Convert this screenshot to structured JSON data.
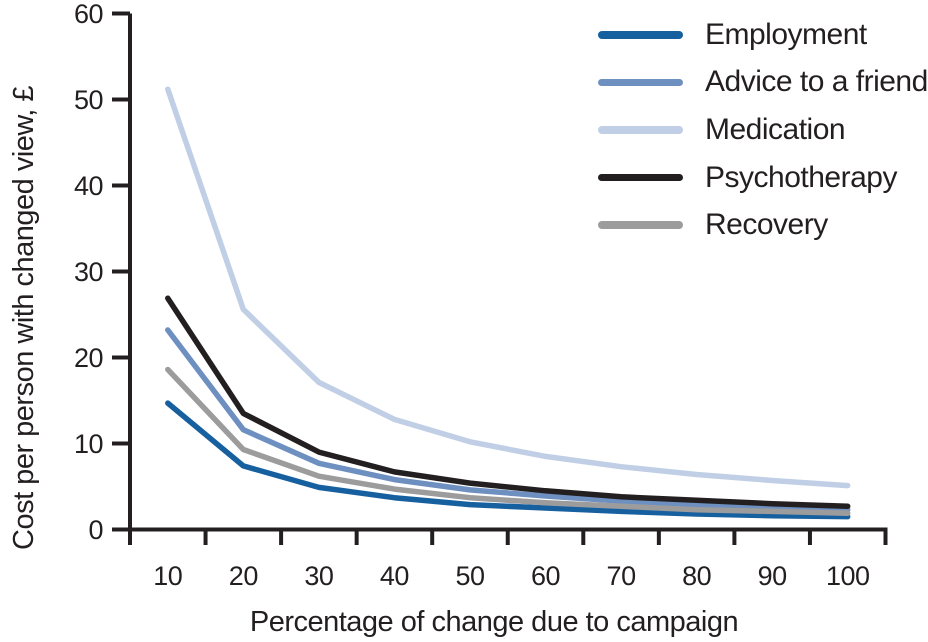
{
  "chart_data": {
    "type": "line",
    "title": "",
    "xlabel": "Percentage of change due to campaign",
    "ylabel": "Cost per person with changed view, £",
    "x": [
      10,
      20,
      30,
      40,
      50,
      60,
      70,
      80,
      90,
      100
    ],
    "x_tick_labels": [
      "10",
      "20",
      "30",
      "40",
      "50",
      "60",
      "70",
      "80",
      "90",
      "100"
    ],
    "y_ticks": [
      0,
      10,
      20,
      30,
      40,
      50,
      60
    ],
    "y_tick_labels": [
      "0",
      "10",
      "20",
      "30",
      "40",
      "50",
      "60"
    ],
    "ylim": [
      0,
      60
    ],
    "grid": false,
    "legend_position": "top-right",
    "axis_color": "#231f20",
    "series": [
      {
        "name": "Employment",
        "color": "#1760a0",
        "values": [
          14.7,
          7.4,
          4.9,
          3.7,
          2.9,
          2.5,
          2.1,
          1.8,
          1.6,
          1.5
        ]
      },
      {
        "name": "Advice to a friend",
        "color": "#6e90c0",
        "values": [
          23.2,
          11.6,
          7.7,
          5.8,
          4.6,
          3.9,
          3.3,
          2.9,
          2.6,
          2.3
        ]
      },
      {
        "name": "Medication",
        "color": "#c0cfe6",
        "values": [
          51.2,
          25.6,
          17.1,
          12.8,
          10.2,
          8.5,
          7.3,
          6.4,
          5.7,
          5.1
        ]
      },
      {
        "name": "Psychotherapy",
        "color": "#231f20",
        "values": [
          26.9,
          13.5,
          9.0,
          6.7,
          5.4,
          4.5,
          3.8,
          3.4,
          3.0,
          2.7
        ]
      },
      {
        "name": "Recovery",
        "color": "#9c9c9c",
        "values": [
          18.6,
          9.3,
          6.2,
          4.7,
          3.7,
          3.1,
          2.7,
          2.3,
          2.1,
          1.9
        ]
      }
    ]
  }
}
